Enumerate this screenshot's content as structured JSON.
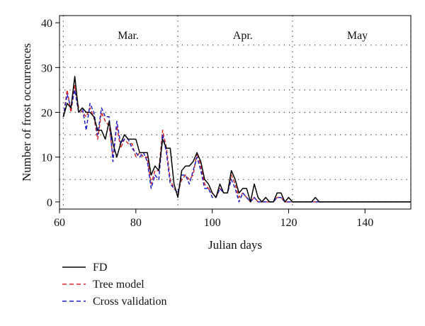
{
  "chart_data": {
    "type": "line",
    "title": "",
    "xlabel": "Julian days",
    "ylabel": "Number of frost occurrences",
    "xlim": [
      60,
      152
    ],
    "ylim": [
      0,
      40
    ],
    "xticks": [
      60,
      80,
      100,
      120,
      140
    ],
    "yticks": [
      0,
      10,
      20,
      30,
      40
    ],
    "vgrid": [
      61,
      91,
      121,
      152
    ],
    "hgrid": [
      5,
      10,
      15,
      20,
      25,
      30,
      35
    ],
    "months": [
      {
        "label": "Mar.",
        "x": 78
      },
      {
        "label": "Apr.",
        "x": 108
      },
      {
        "label": "May",
        "x": 138
      }
    ],
    "legend_position": "bottom-left",
    "series": [
      {
        "name": "FD",
        "color": "#000000",
        "dash": "solid",
        "x": [
          61,
          62,
          63,
          64,
          65,
          66,
          67,
          68,
          69,
          70,
          71,
          72,
          73,
          74,
          75,
          76,
          77,
          78,
          79,
          80,
          81,
          82,
          83,
          84,
          85,
          86,
          87,
          88,
          89,
          90,
          91,
          92,
          93,
          94,
          95,
          96,
          97,
          98,
          99,
          100,
          101,
          102,
          103,
          104,
          105,
          106,
          107,
          108,
          109,
          110,
          111,
          112,
          113,
          114,
          115,
          116,
          117,
          118,
          119,
          120,
          121,
          122,
          123,
          124,
          125,
          126,
          127,
          128,
          152
        ],
        "y": [
          19,
          22,
          21,
          28,
          20,
          21,
          20,
          20,
          19,
          16,
          16,
          14,
          18,
          13,
          10,
          13,
          15,
          14,
          14,
          14,
          11,
          11,
          11,
          6,
          8,
          7,
          14,
          12,
          12,
          4,
          1,
          7,
          8,
          8,
          9,
          11,
          9,
          5,
          4,
          2,
          1,
          4,
          2,
          2,
          7,
          5,
          2,
          3,
          3,
          0,
          4,
          1,
          0,
          1,
          0,
          0,
          2,
          2,
          0,
          1,
          0,
          0,
          0,
          0,
          0,
          0,
          1,
          0,
          0
        ]
      },
      {
        "name": "Tree model",
        "color": "#d62728",
        "dash": "dashed",
        "x": [
          61,
          62,
          63,
          64,
          65,
          66,
          67,
          68,
          69,
          70,
          71,
          72,
          73,
          74,
          75,
          76,
          77,
          78,
          79,
          80,
          81,
          82,
          83,
          84,
          85,
          86,
          87,
          88,
          89,
          90,
          91,
          92,
          93,
          94,
          95,
          96,
          97,
          98,
          99,
          100,
          101,
          102,
          103,
          104,
          105,
          106,
          107,
          108,
          109,
          110,
          111,
          112,
          113,
          114,
          115,
          116,
          117,
          118,
          119,
          120,
          121,
          152
        ],
        "y": [
          19,
          25,
          20,
          26,
          21,
          20,
          19,
          21,
          19,
          14,
          20,
          18,
          17,
          10,
          17,
          12,
          14,
          13,
          13,
          10,
          11,
          10,
          10,
          4,
          7,
          7,
          16,
          12,
          5,
          3,
          2,
          5,
          6,
          5,
          6,
          11,
          8,
          4,
          3,
          2,
          1,
          3,
          2,
          2,
          6,
          4,
          1,
          2,
          1,
          0,
          1,
          0,
          0,
          0,
          0,
          0,
          1,
          1,
          0,
          0,
          0,
          0
        ]
      },
      {
        "name": "Cross validation",
        "color": "#2020c8",
        "dash": "dashed",
        "x": [
          61,
          62,
          63,
          64,
          65,
          66,
          67,
          68,
          69,
          70,
          71,
          72,
          73,
          74,
          75,
          76,
          77,
          78,
          79,
          80,
          81,
          82,
          83,
          84,
          85,
          86,
          87,
          88,
          89,
          90,
          91,
          92,
          93,
          94,
          95,
          96,
          97,
          98,
          99,
          100,
          101,
          102,
          103,
          104,
          105,
          106,
          107,
          108,
          109,
          110,
          111,
          112,
          113,
          114,
          115,
          116,
          117,
          118,
          119,
          120,
          121,
          152
        ],
        "y": [
          19,
          24,
          21,
          25,
          20,
          21,
          16,
          22,
          20,
          15,
          21,
          19,
          19,
          9,
          18,
          13,
          14,
          14,
          12,
          11,
          10,
          11,
          9,
          3,
          6,
          5,
          15,
          11,
          4,
          3,
          2,
          6,
          6,
          4,
          7,
          10,
          7,
          3,
          3,
          1,
          1,
          3,
          2,
          2,
          5,
          3,
          0,
          2,
          1,
          0,
          1,
          0,
          0,
          0,
          0,
          0,
          1,
          1,
          0,
          0,
          0,
          0
        ]
      }
    ]
  }
}
